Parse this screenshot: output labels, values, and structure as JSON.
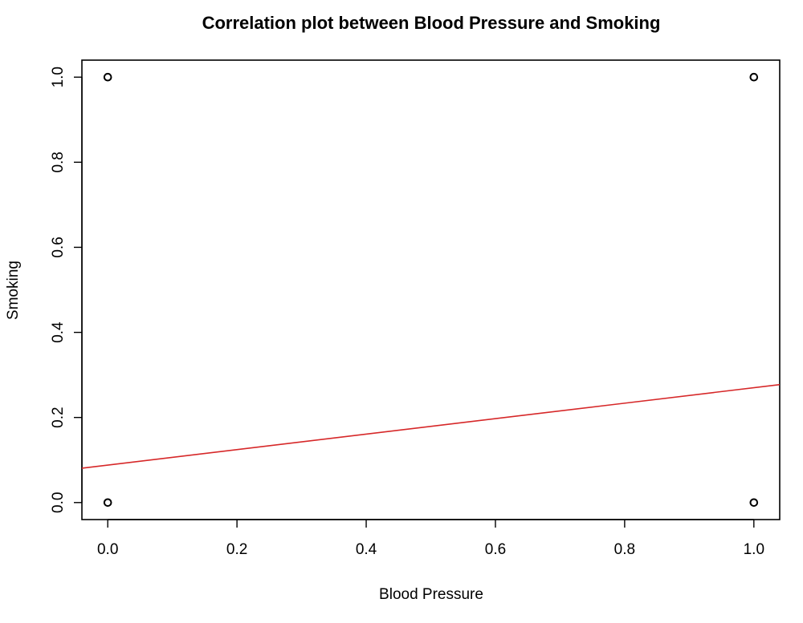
{
  "chart_data": {
    "type": "scatter",
    "title": "Correlation plot between Blood Pressure and Smoking",
    "xlabel": "Blood Pressure",
    "ylabel": "Smoking",
    "xlim": [
      -0.04,
      1.04
    ],
    "ylim": [
      -0.04,
      1.04
    ],
    "x_ticks": [
      0.0,
      0.2,
      0.4,
      0.6,
      0.8,
      1.0
    ],
    "x_tick_labels": [
      "0.0",
      "0.2",
      "0.4",
      "0.6",
      "0.8",
      "1.0"
    ],
    "y_ticks": [
      0.0,
      0.2,
      0.4,
      0.6,
      0.8,
      1.0
    ],
    "y_tick_labels": [
      "0.0",
      "0.2",
      "0.4",
      "0.6",
      "0.8",
      "1.0"
    ],
    "grid": false,
    "points": [
      {
        "x": 0,
        "y": 1
      },
      {
        "x": 1,
        "y": 1
      },
      {
        "x": 0,
        "y": 0
      },
      {
        "x": 1,
        "y": 0
      }
    ],
    "regression_line": {
      "intercept": 0.088,
      "slope": 0.182,
      "color": "#d62728"
    },
    "point_color": "#000000"
  }
}
